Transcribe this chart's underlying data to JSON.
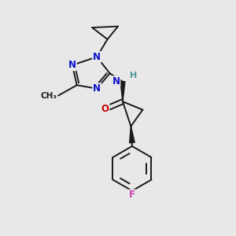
{
  "background_color": "#e8e8e8",
  "bond_color": "#1a1a1a",
  "atom_colors": {
    "N": "#1010cc",
    "O": "#cc0000",
    "F": "#cc44aa",
    "H": "#4a9898",
    "C": "#1a1a1a"
  },
  "figsize": [
    3.0,
    3.0
  ],
  "dpi": 100,
  "lw": 1.4
}
